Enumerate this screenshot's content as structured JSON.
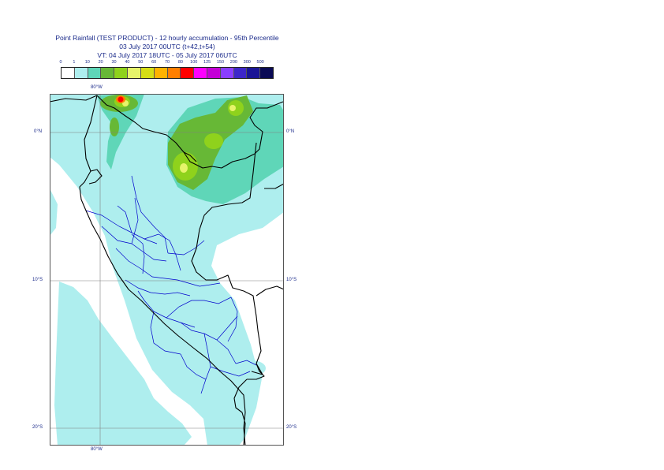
{
  "title": {
    "line1": "Point Rainfall (TEST PRODUCT) - 12 hourly accumulation - 95th Percentile",
    "line2": "03 July 2017 00UTC (t+42,t+54)",
    "line3": "VT: 04 July 2017 18UTC - 05 July 2017 06UTC"
  },
  "legend": {
    "ticks": [
      "0",
      "1",
      "10",
      "20",
      "30",
      "40",
      "50",
      "60",
      "70",
      "80",
      "100",
      "125",
      "150",
      "200",
      "300",
      "500"
    ],
    "colors": [
      "#ffffff",
      "#aeeeee",
      "#5fd6b8",
      "#67b836",
      "#8fd21c",
      "#e6f46a",
      "#d6de15",
      "#ffb300",
      "#ff7f00",
      "#ff0000",
      "#ff00ff",
      "#c400d6",
      "#8a3dff",
      "#3d26c9",
      "#1a1596",
      "#0a0a55"
    ]
  },
  "map": {
    "region": "Peru",
    "colors": {
      "light_rain": "#aeeeee",
      "moderate_rain": "#5fd6b8",
      "green": "#67b836",
      "lime": "#8fd21c",
      "yellow": "#e6f46a",
      "red": "#ff0000",
      "coast": "#000000",
      "admin_borders": "#0000cc",
      "graticule": "#808080"
    },
    "labels": {
      "lon_top": "80°W",
      "lon_bottom": "80°W",
      "lat_0_left": "0°N",
      "lat_0_right": "0°N",
      "lat_10_left": "10°S",
      "lat_10_right": "10°S",
      "lat_20_left": "20°S",
      "lat_20_right": "20°S"
    }
  }
}
